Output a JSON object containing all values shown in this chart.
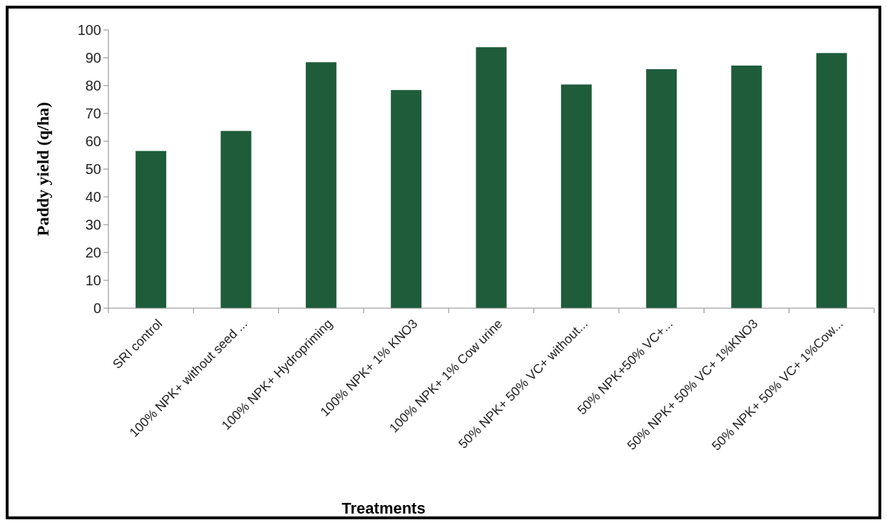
{
  "chart_data": {
    "type": "bar",
    "xlabel": "Treatments",
    "ylabel": "Paddy yield (q/ha)",
    "categories": [
      "SRI control",
      "100% NPK+ without seed ...",
      "100% NPK+ Hydropriming",
      "100% NPK+ 1% KNO3",
      "100% NPK+ 1% Cow urine",
      "50% NPK+ 50% VC+ without...",
      "50% NPK+50% VC+...",
      "50% NPK+ 50% VC+ 1%KNO3",
      "50% NPK+ 50% VC+ 1%Cow..."
    ],
    "values": [
      56.5,
      63.7,
      88.4,
      78.4,
      93.8,
      80.4,
      85.9,
      87.2,
      91.7
    ],
    "color": "#1e5c3a",
    "ylim": [
      0,
      100
    ],
    "yticks": [
      0,
      10,
      20,
      30,
      40,
      50,
      60,
      70,
      80,
      90,
      100
    ],
    "grid": false
  }
}
